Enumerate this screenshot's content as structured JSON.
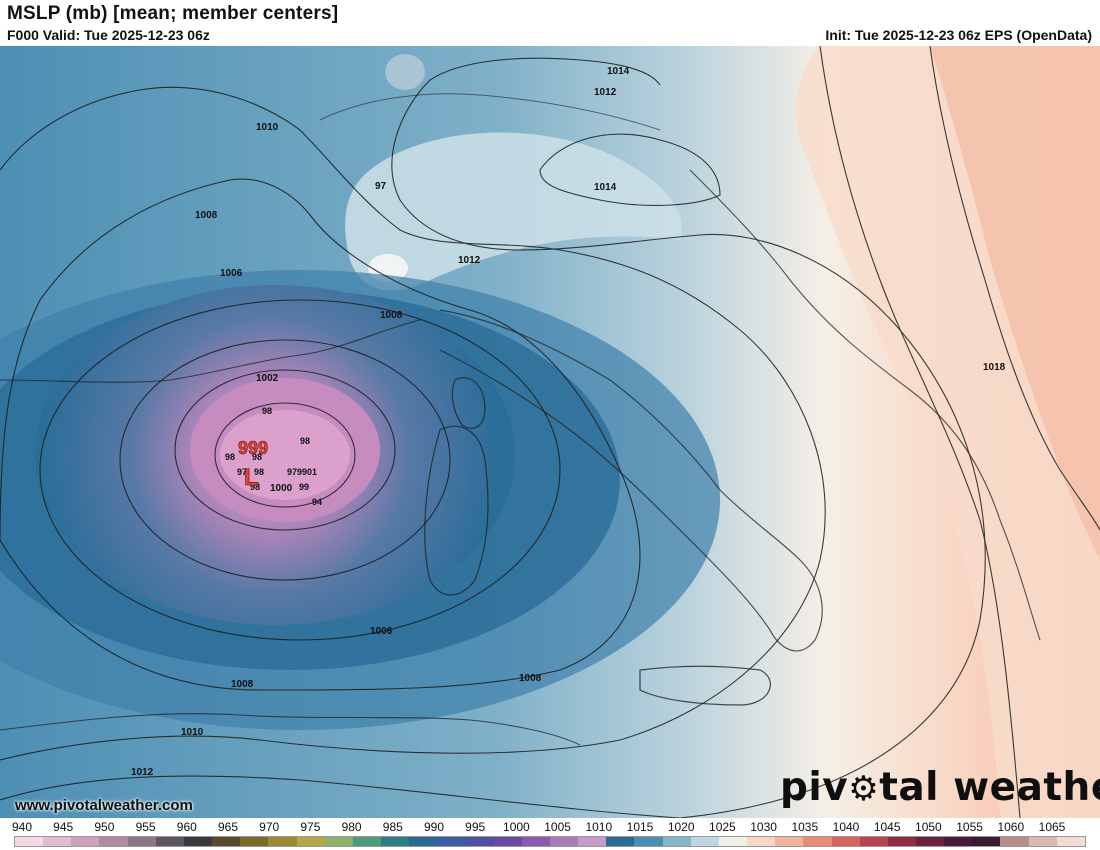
{
  "header": {
    "title": "MSLP (mb) [mean; member centers]",
    "valid": "F000 Valid: Tue 2025-12-23 06z",
    "init": "Init: Tue 2025-12-23 06z EPS (OpenData)"
  },
  "map": {
    "low_marker": "L",
    "low_value": "999",
    "contour_labels": [
      "1014",
      "1012",
      "1010",
      "1008",
      "1006",
      "97",
      "1014",
      "1012",
      "1008",
      "1002",
      "98",
      "98",
      "98",
      "98",
      "97",
      "98",
      "98",
      "979901",
      "1000",
      "99",
      "94",
      "1018",
      "1006",
      "1008",
      "1008",
      "1010",
      "1012"
    ],
    "colors": {
      "low_center": "#d79ac6",
      "deep_blue": "#2a6d99",
      "mid_blue": "#5f9ab8",
      "light_blue": "#b7d1dd",
      "cream": "#fbf1e5",
      "salmon": "#f6c2ad"
    }
  },
  "watermark": {
    "url": "www.pivotalweather.com",
    "brand": "pivotal weather"
  },
  "colorbar": {
    "ticks": [
      "940",
      "945",
      "950",
      "955",
      "960",
      "965",
      "970",
      "975",
      "980",
      "985",
      "990",
      "995",
      "1000",
      "1005",
      "1010",
      "1015",
      "1020",
      "1025",
      "1030",
      "1035",
      "1040",
      "1045",
      "1050",
      "1055",
      "1060",
      "1065"
    ]
  }
}
